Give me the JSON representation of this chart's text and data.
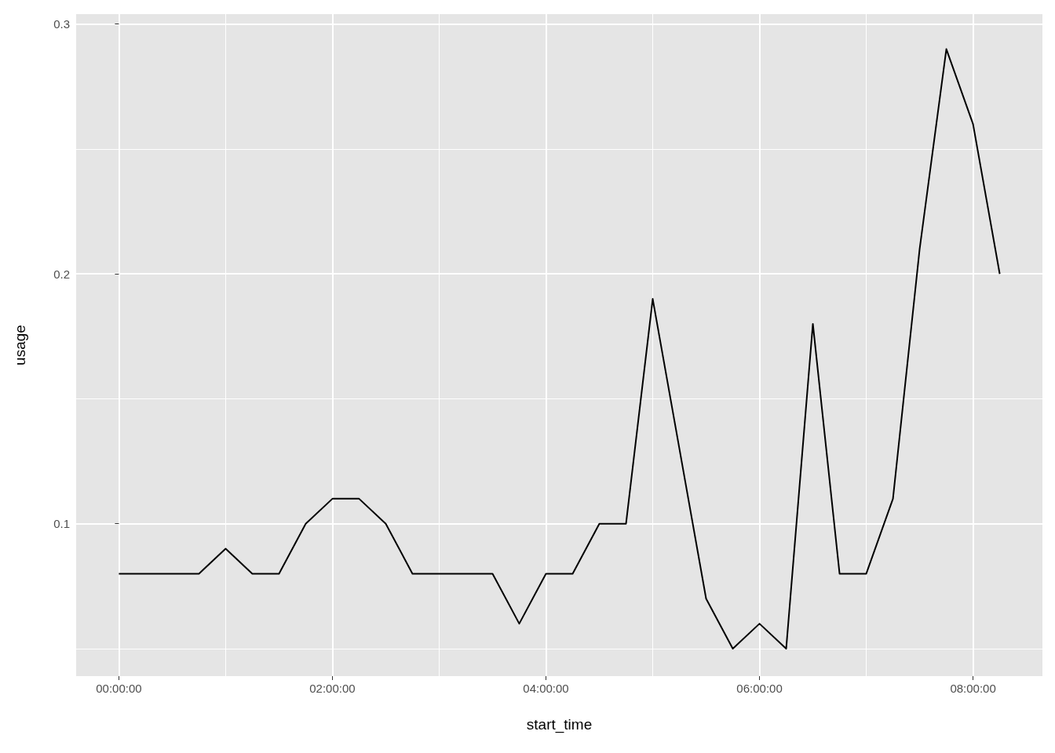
{
  "chart_data": {
    "type": "line",
    "xlabel": "start_time",
    "ylabel": "usage",
    "x": [
      0,
      0.25,
      0.5,
      0.75,
      1,
      1.25,
      1.5,
      1.75,
      2,
      2.25,
      2.5,
      2.75,
      3,
      3.25,
      3.5,
      3.75,
      4,
      4.25,
      4.5,
      4.75,
      5,
      5.25,
      5.5,
      5.75,
      6,
      6.25,
      6.5,
      6.75,
      7,
      7.25,
      7.5,
      7.75,
      8,
      8.25
    ],
    "series": [
      {
        "color": "#000000",
        "values": [
          0.08,
          0.08,
          0.08,
          0.08,
          0.09,
          0.08,
          0.08,
          0.1,
          0.11,
          0.11,
          0.1,
          0.08,
          0.08,
          0.08,
          0.08,
          0.06,
          0.08,
          0.08,
          0.1,
          0.1,
          0.19,
          0.13,
          0.07,
          0.05,
          0.06,
          0.05,
          0.18,
          0.08,
          0.08,
          0.11,
          0.21,
          0.29,
          0.26,
          0.2
        ]
      }
    ],
    "xlim": [
      -0.4,
      8.65
    ],
    "xticks": [
      {
        "value": 0,
        "label": "00:00:00"
      },
      {
        "value": 2,
        "label": "02:00:00"
      },
      {
        "value": 4,
        "label": "04:00:00"
      },
      {
        "value": 6,
        "label": "06:00:00"
      },
      {
        "value": 8,
        "label": "08:00:00"
      }
    ],
    "ylim": [
      0.039,
      0.304
    ],
    "yticks": [
      0.1,
      0.2,
      0.3
    ],
    "grid": true,
    "marker": "none",
    "line_style": "solid"
  }
}
